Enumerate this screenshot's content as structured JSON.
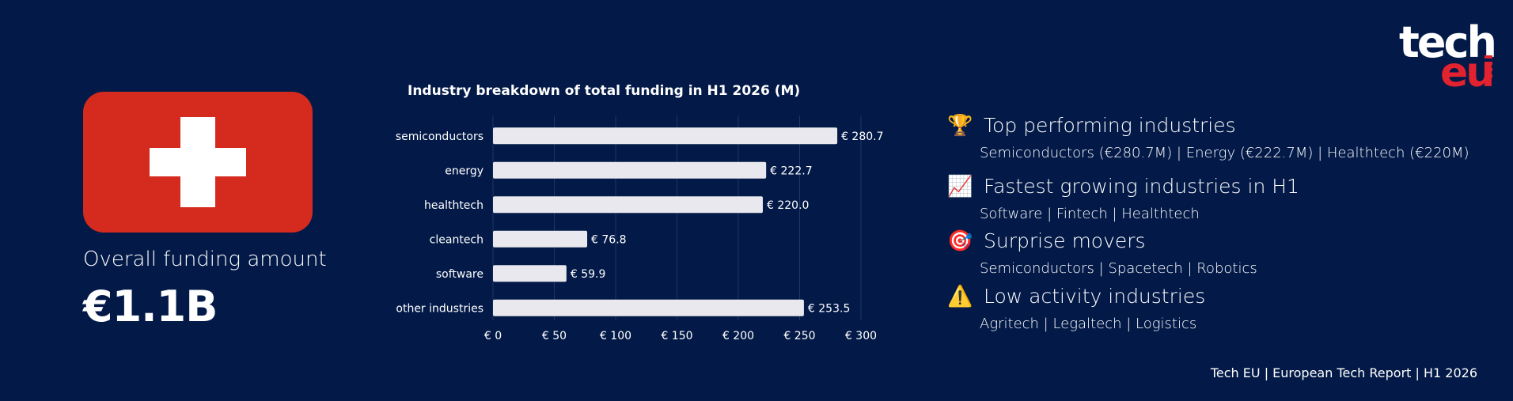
{
  "country": {
    "flag_name": "Switzerland",
    "colors": {
      "flag_red": "#d52b1e",
      "flag_white": "#ffffff"
    }
  },
  "funding": {
    "label": "Overall funding amount",
    "value": "€1.1B"
  },
  "chart_data": {
    "type": "bar",
    "orientation": "horizontal",
    "title": "Industry breakdown of total funding in H1 2026 (M)",
    "categories": [
      "semiconductors",
      "energy",
      "healthtech",
      "cleantech",
      "software",
      "other industries"
    ],
    "values": [
      280.7,
      222.7,
      220.0,
      76.8,
      59.9,
      253.5
    ],
    "data_labels": [
      "€ 280.7",
      "€ 222.7",
      "€ 220.0",
      "€ 76.8",
      "€ 59.9",
      "€ 253.5"
    ],
    "xlim": [
      0,
      300
    ],
    "x_ticks": [
      0,
      50,
      100,
      150,
      200,
      250,
      300
    ],
    "x_tick_labels": [
      "€ 0",
      "€ 50",
      "€ 100",
      "€ 150",
      "€ 200",
      "€ 250",
      "€ 300"
    ],
    "grid": "vertical",
    "bar_color": "#e8e8ee",
    "grid_color": "#1e3566"
  },
  "insights": [
    {
      "icon": "trophy-icon",
      "glyph": "🏆",
      "heading": "Top performing industries",
      "detail": "Semiconductors (€280.7M) | Energy (€222.7M) | Healthtech (€220M)"
    },
    {
      "icon": "chart-increasing-icon",
      "glyph": "📈",
      "heading": "Fastest growing industries in H1",
      "detail": "Software | Fintech | Healthtech"
    },
    {
      "icon": "target-icon",
      "glyph": "🎯",
      "heading": "Surprise movers",
      "detail": "Semiconductors | Spacetech | Robotics"
    },
    {
      "icon": "warning-icon",
      "glyph": "⚠️",
      "heading": "Low activity industries",
      "detail": "Agritech | Legaltech | Logistics"
    }
  ],
  "logo": {
    "line1": "tech",
    "line2": "eu"
  },
  "footer": "Tech EU | European Tech Report | H1 2026",
  "colors": {
    "background": "#031a48",
    "accent_red": "#e3222f",
    "text": "#ffffff"
  }
}
